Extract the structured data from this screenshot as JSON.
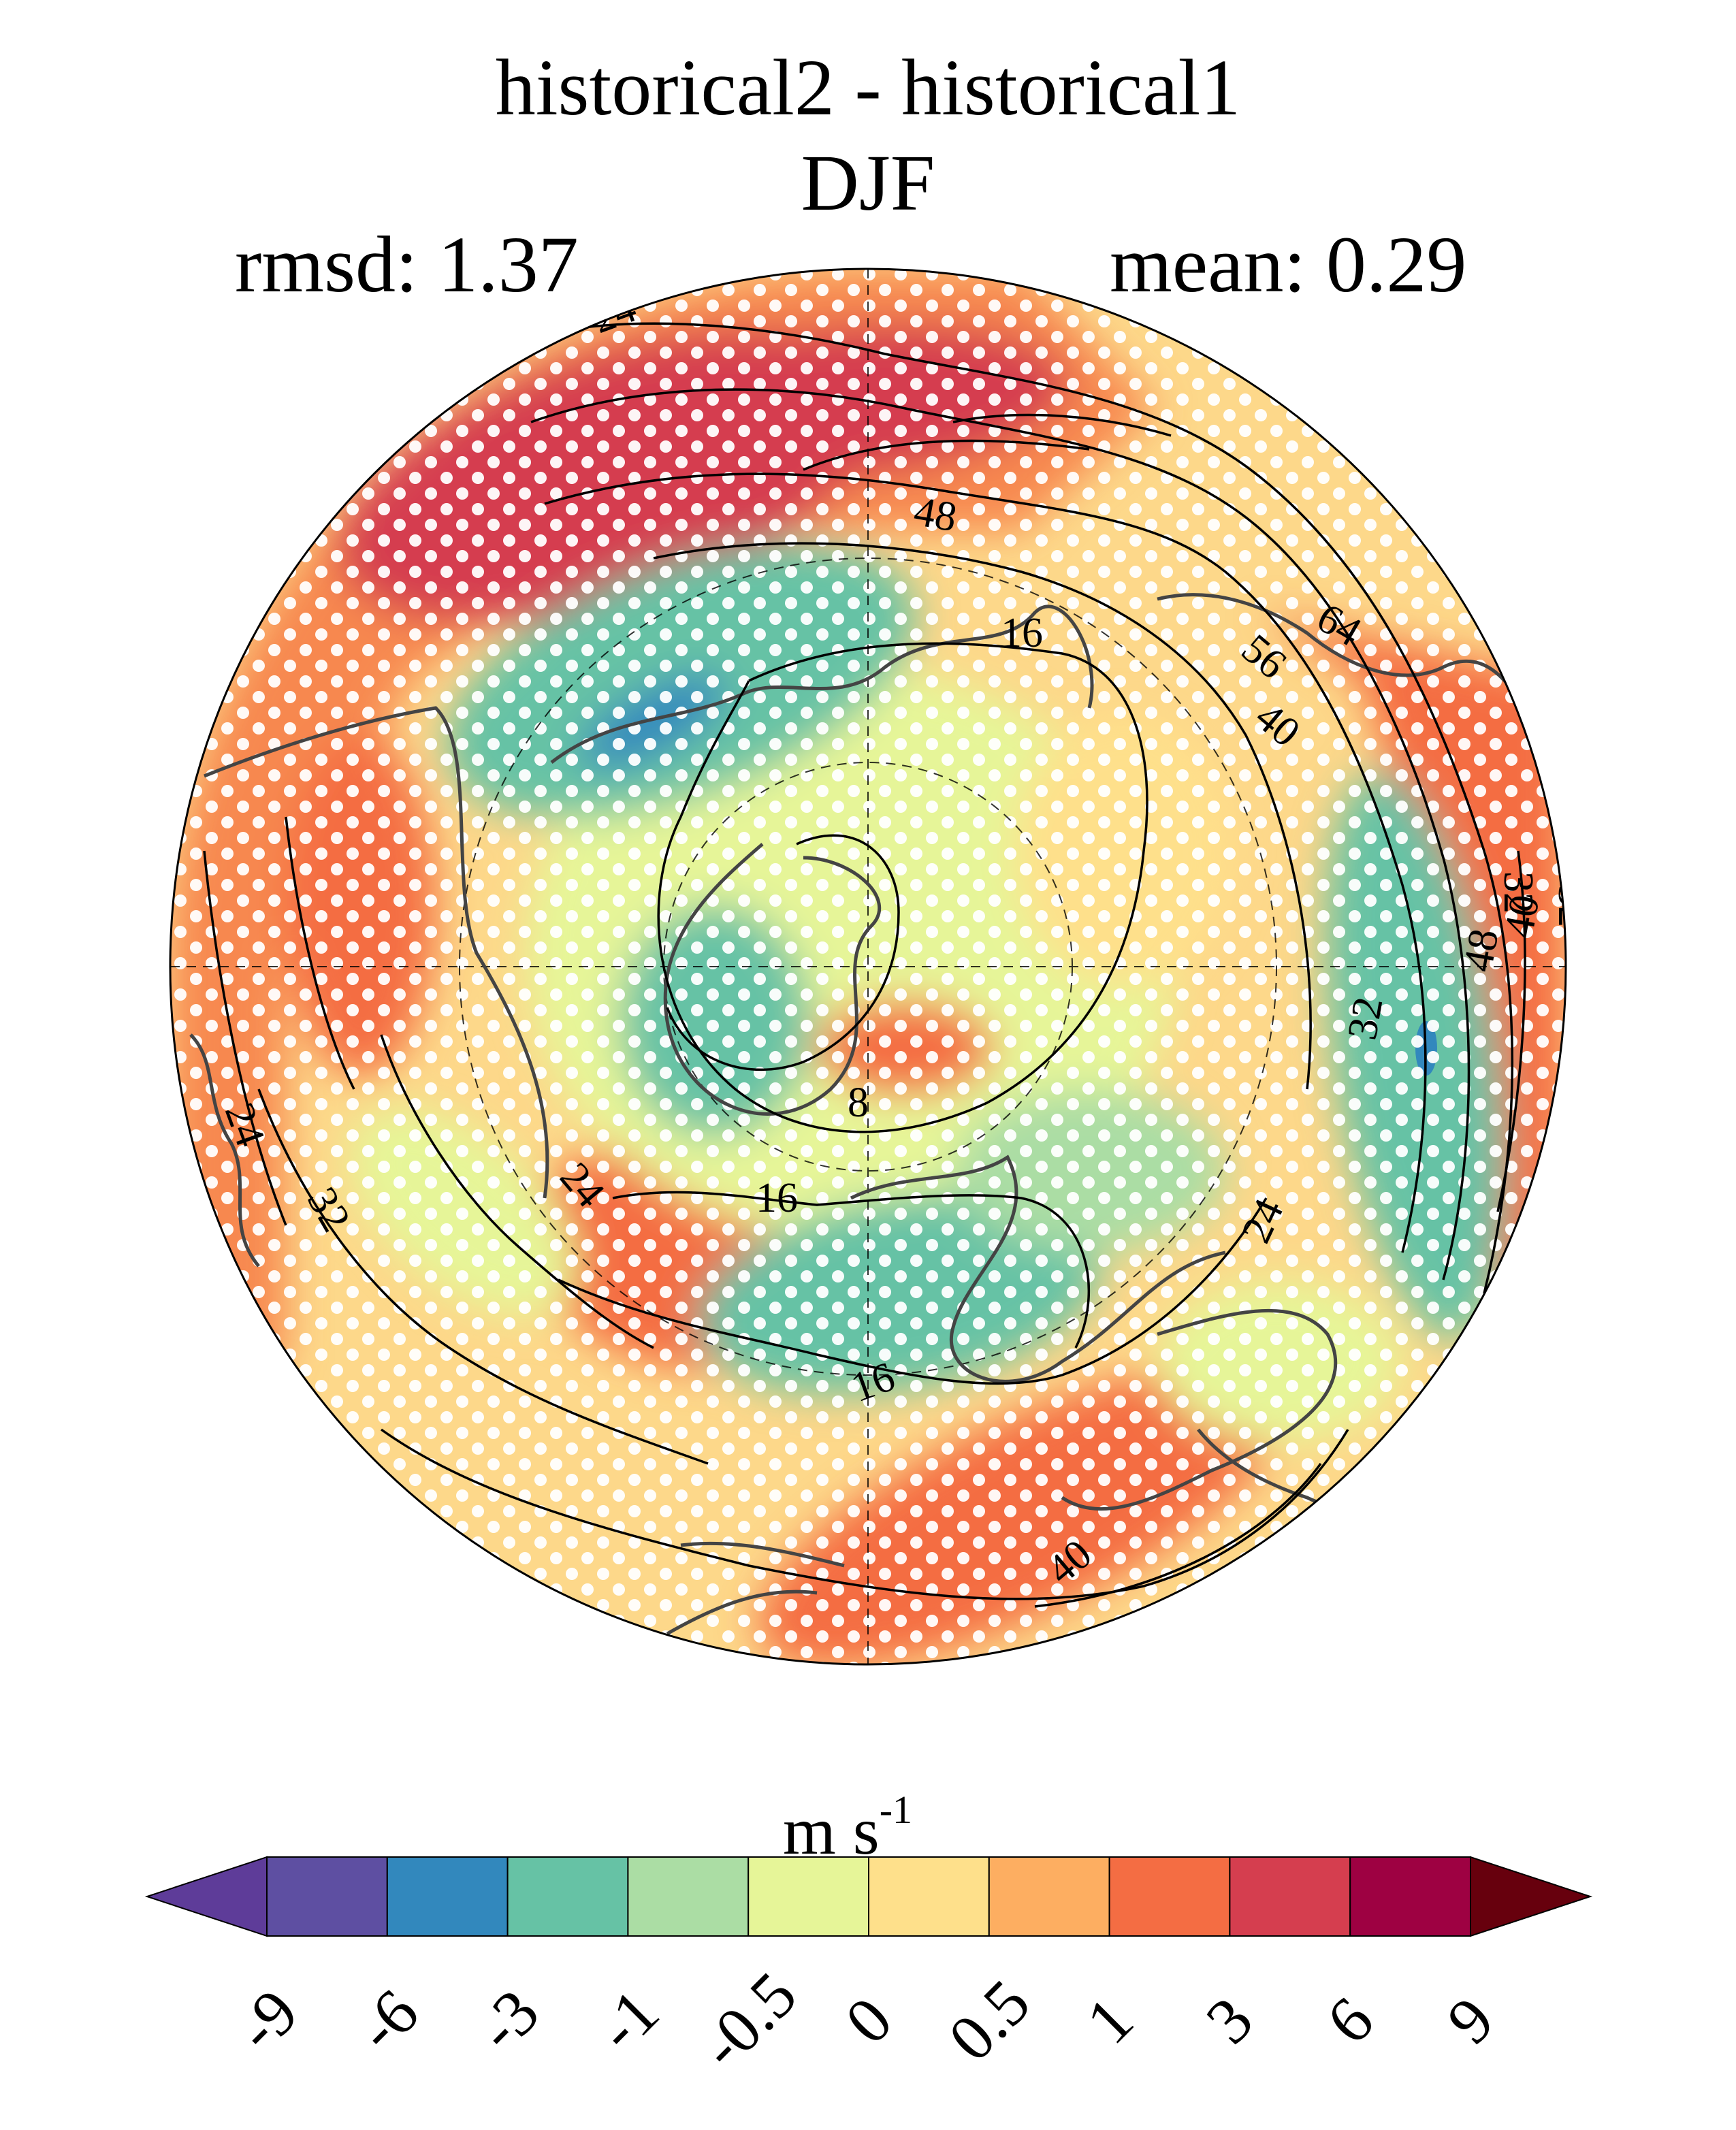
{
  "title": {
    "line1": "historical2 - historical1",
    "line2": "DJF"
  },
  "stats": {
    "rmsd": "rmsd: 1.37",
    "mean": "mean: 0.29"
  },
  "map": {
    "projection": "north-polar-stereographic",
    "contour_labels": [
      "24",
      "48",
      "16",
      "64",
      "56",
      "40",
      "8",
      "32",
      "24",
      "32",
      "16",
      "24",
      "16",
      "24",
      "40",
      "32",
      "48",
      "40",
      "32"
    ]
  },
  "colorbar": {
    "units": "m s",
    "units_exponent": "-1",
    "tick_labels": [
      "-9",
      "-6",
      "-3",
      "-1",
      "-0.5",
      "0",
      "0.5",
      "1",
      "3",
      "6",
      "9"
    ],
    "colors": [
      "#5e4fa2",
      "#3288bd",
      "#66c2a5",
      "#abdda4",
      "#e6f598",
      "#fee08b",
      "#fdae61",
      "#f46d43",
      "#d53e4f",
      "#9e0142"
    ],
    "extend_low_color": "#5e3c99",
    "extend_high_color": "#67000d"
  }
}
